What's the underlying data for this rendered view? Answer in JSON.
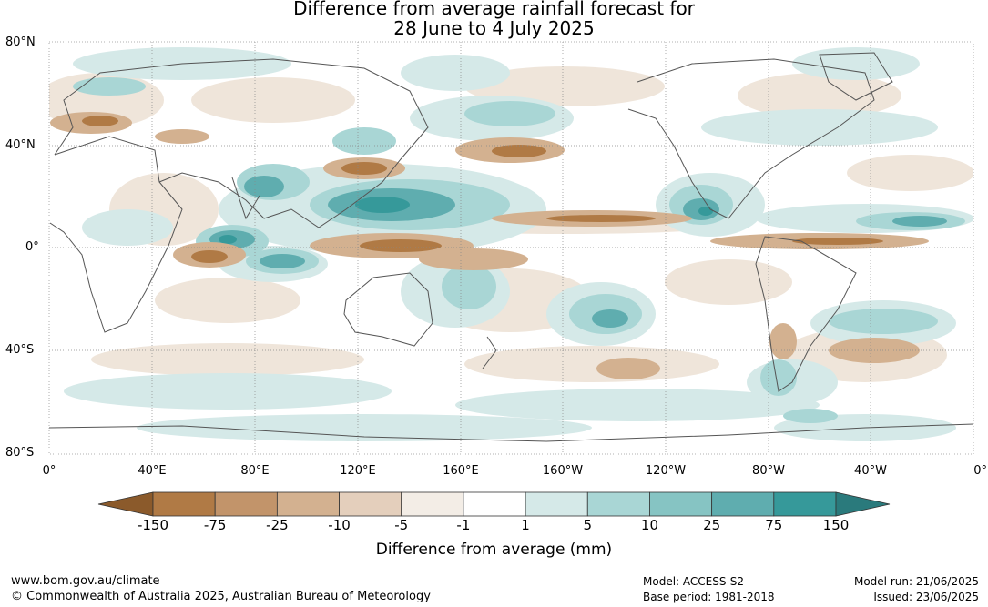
{
  "title": {
    "line1": "Difference from average rainfall forecast for",
    "line2": "28 June to 4 July 2025"
  },
  "axes": {
    "lat_labels": [
      "80°N",
      "40°N",
      "0°",
      "40°S",
      "80°S"
    ],
    "lon_labels": [
      "0°",
      "40°E",
      "80°E",
      "120°E",
      "160°E",
      "160°W",
      "120°W",
      "80°W",
      "40°W",
      "0°"
    ]
  },
  "colorbar": {
    "title": "Difference from average (mm)",
    "labels": [
      "-150",
      "-75",
      "-25",
      "-10",
      "-5",
      "-1",
      "1",
      "5",
      "10",
      "25",
      "75",
      "150"
    ],
    "colors": [
      "#8b5a2b",
      "#b07a45",
      "#c2946a",
      "#d3b190",
      "#e4cfbc",
      "#f3ede6",
      "#ffffff",
      "#d5e9e8",
      "#a9d6d5",
      "#86c4c3",
      "#5fadaf",
      "#36999a",
      "#2a7a7c"
    ]
  },
  "footer": {
    "url": "www.bom.gov.au/climate",
    "copyright": "© Commonwealth of Australia 2025, Australian Bureau of Meteorology",
    "model": "Model: ACCESS-S2",
    "base_period": "Base period: 1981-2018",
    "model_run": "Model run: 21/06/2025",
    "issued": "Issued: 23/06/2025"
  }
}
